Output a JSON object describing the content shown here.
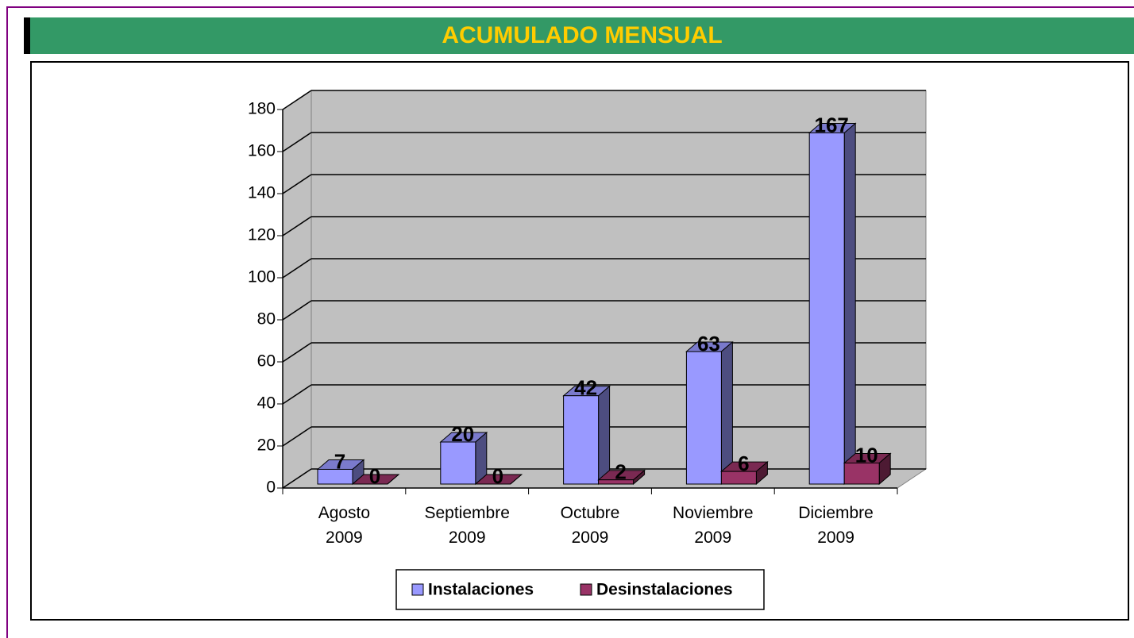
{
  "header": {
    "title": "ACUMULADO MENSUAL"
  },
  "chart_data": {
    "type": "bar3d",
    "categories": [
      "Agosto 2009",
      "Septiembre 2009",
      "Octubre 2009",
      "Noviembre 2009",
      "Diciembre 2009"
    ],
    "series": [
      {
        "name": "Instalaciones",
        "color": "#9999ff",
        "values": [
          7,
          20,
          42,
          63,
          167
        ]
      },
      {
        "name": "Desinstalaciones",
        "color": "#993366",
        "values": [
          0,
          0,
          2,
          6,
          10
        ]
      }
    ],
    "ylim": [
      0,
      180
    ],
    "yticks": [
      0,
      20,
      40,
      60,
      80,
      100,
      120,
      140,
      160,
      180
    ],
    "grid": true,
    "legend": "bottom"
  }
}
